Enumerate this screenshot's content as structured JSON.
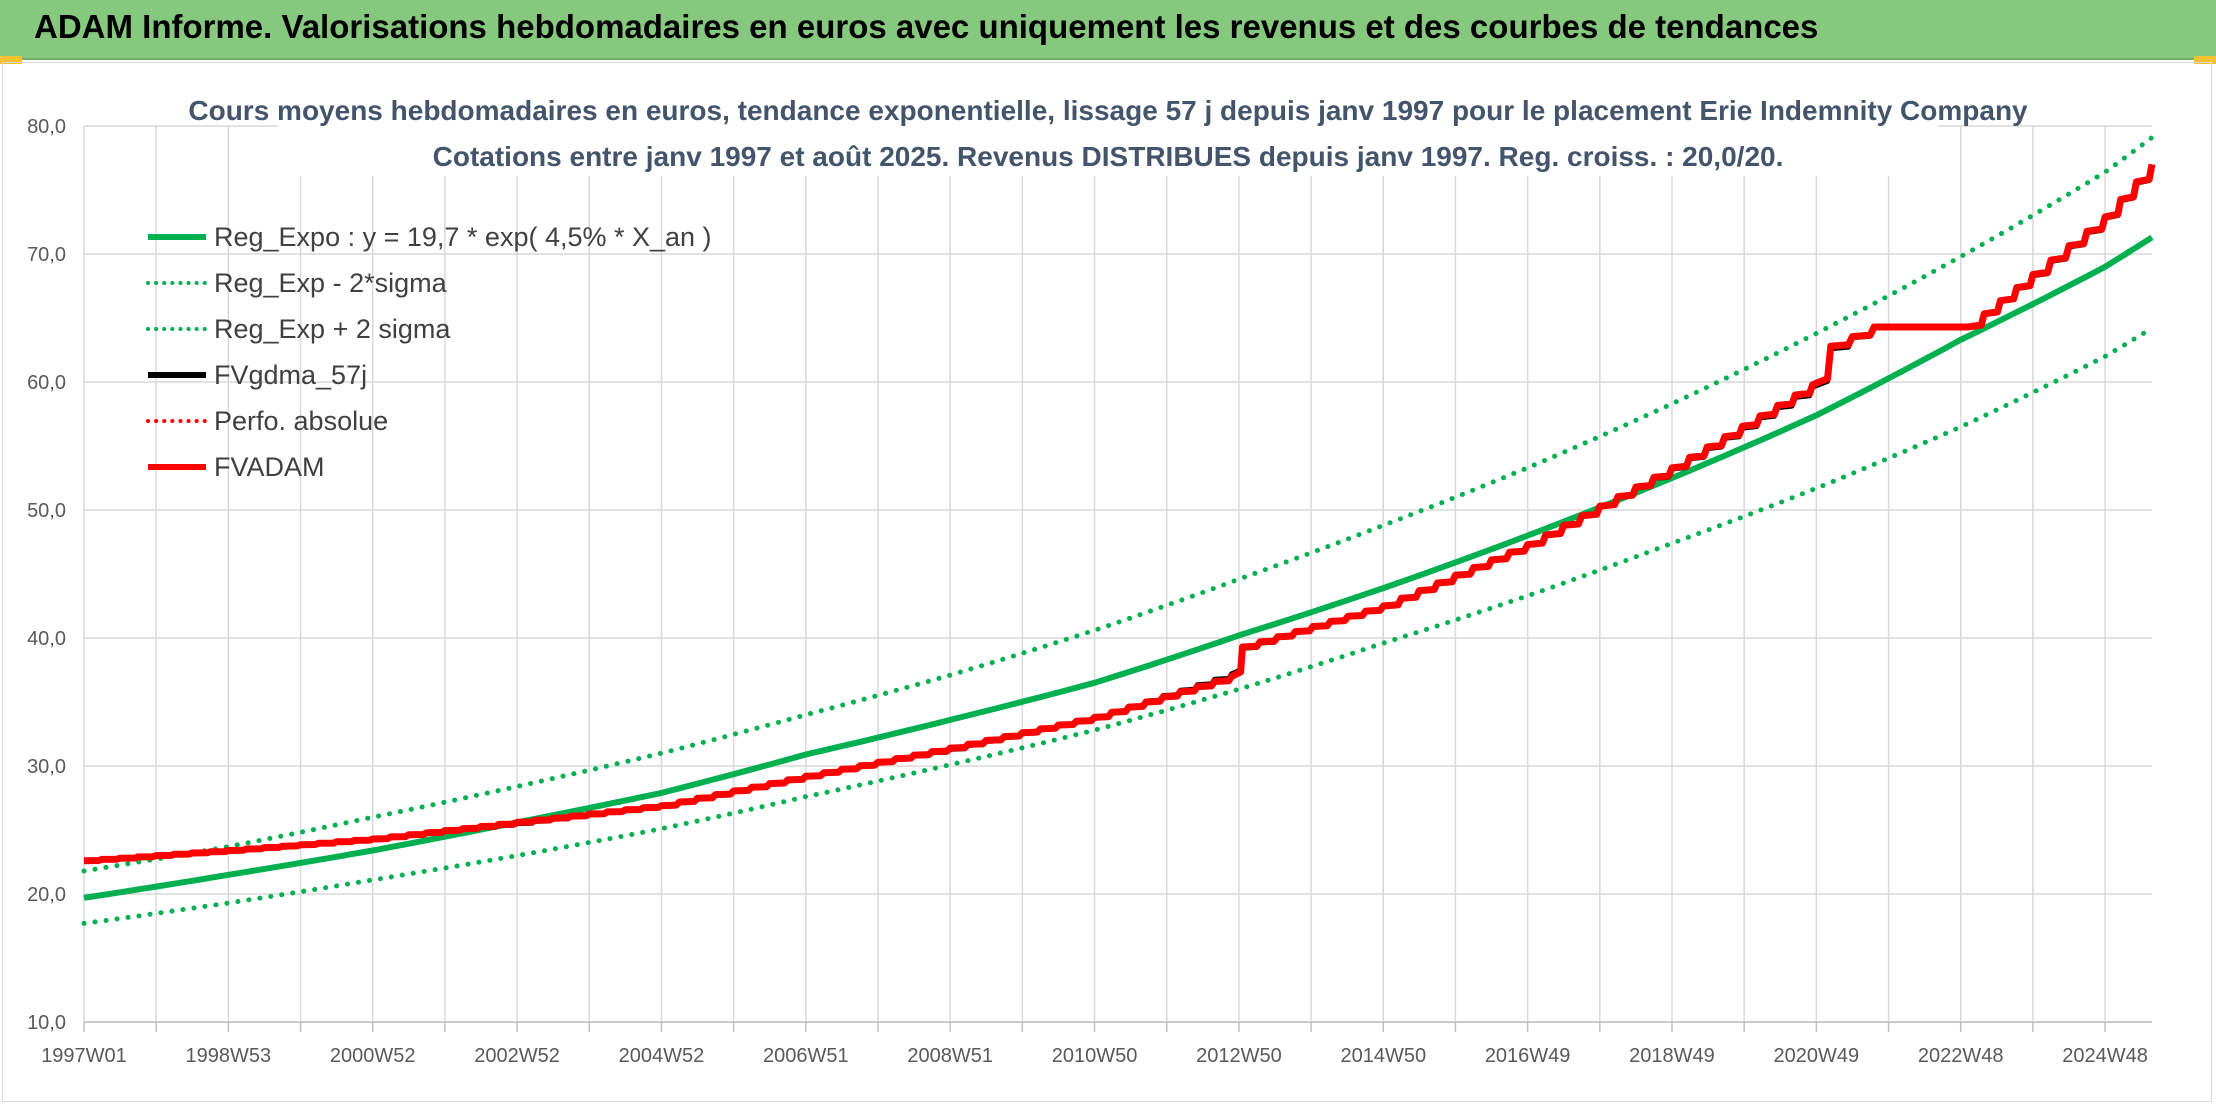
{
  "banner": {
    "title": "ADAM Informe. Valorisations hebdomadaires en euros avec uniquement les revenus et des courbes de tendances"
  },
  "colors": {
    "banner_bg": "#86c97e",
    "reg": "#00b050",
    "fv57": "#000000",
    "adam": "#ff0000"
  },
  "chart_data": {
    "type": "line",
    "title_line1": "Cours moyens hebdomadaires en euros, tendance exponentielle, lissage 57 j depuis janv 1997 pour le placement Erie Indemnity Company",
    "title_line2": "Cotations entre janv 1997 et août 2025. Revenus DISTRIBUES depuis janv 1997. Reg. croiss. : 20,0/20.",
    "ylim": [
      10,
      80
    ],
    "xlim": [
      0,
      28.65
    ],
    "grid": true,
    "legend_position": "top-left",
    "y_ticks": [
      "10,0",
      "20,0",
      "30,0",
      "40,0",
      "50,0",
      "60,0",
      "70,0",
      "80,0"
    ],
    "y_tick_values": [
      10,
      20,
      30,
      40,
      50,
      60,
      70,
      80
    ],
    "x_ticks": [
      "1997W01",
      "1998W53",
      "2000W52",
      "2002W52",
      "2004W52",
      "2006W51",
      "2008W51",
      "2010W50",
      "2012W50",
      "2014W50",
      "2016W49",
      "2018W49",
      "2020W49",
      "2022W48",
      "2024W48"
    ],
    "x_tick_values": [
      0,
      2,
      4,
      6,
      8,
      10,
      12,
      14,
      16,
      18,
      20,
      22,
      24,
      26,
      28
    ],
    "series": [
      {
        "name": "Reg_Expo : y = 19,7 * exp( 4,5% *  X_an )",
        "style": "solid",
        "color": "#00b050",
        "x": [
          0,
          2,
          4,
          6,
          8,
          10,
          12,
          14,
          16,
          18,
          20,
          22,
          24,
          26,
          28,
          28.65
        ],
        "values": [
          19.7,
          21.5,
          23.4,
          25.6,
          27.9,
          30.9,
          33.6,
          36.5,
          40.2,
          43.9,
          48.0,
          52.5,
          57.4,
          63.3,
          69.0,
          71.3
        ]
      },
      {
        "name": "Reg_Exp - 2*sigma",
        "style": "dotted",
        "color": "#00b050",
        "x": [
          0,
          2,
          4,
          6,
          8,
          10,
          12,
          14,
          16,
          18,
          20,
          22,
          24,
          26,
          28,
          28.65
        ],
        "values": [
          17.7,
          19.3,
          21.1,
          23.0,
          25.1,
          27.6,
          30.1,
          32.8,
          36.0,
          39.6,
          43.3,
          47.4,
          51.7,
          56.5,
          62.0,
          64.2
        ]
      },
      {
        "name": "Reg_Exp + 2 sigma",
        "style": "dotted",
        "color": "#00b050",
        "x": [
          0,
          2,
          4,
          6,
          8,
          10,
          12,
          14,
          16,
          18,
          20,
          22,
          24,
          26,
          28,
          28.65
        ],
        "values": [
          21.8,
          23.7,
          26.0,
          28.4,
          31.0,
          34.0,
          37.1,
          40.6,
          44.6,
          48.8,
          53.3,
          58.3,
          63.8,
          69.8,
          76.4,
          79.1
        ]
      },
      {
        "name": "FVgdma_57j",
        "style": "solid",
        "color": "#000000",
        "x": [
          0,
          2,
          4,
          6,
          8,
          10,
          12,
          14,
          15.9,
          16.05,
          18,
          20,
          22,
          23.95,
          24.2,
          24.8,
          26.1,
          27.0,
          28.0,
          28.65
        ],
        "values": [
          22.6,
          23.4,
          24.3,
          25.5,
          26.9,
          29.2,
          31.3,
          33.8,
          37.2,
          39.2,
          42.5,
          47.3,
          53.2,
          59.6,
          62.6,
          64.3,
          64.3,
          68.3,
          72.8,
          76.9
        ]
      },
      {
        "name": "Perfo. absolue",
        "style": "dotted",
        "color": "#ff0000",
        "x": [],
        "values": []
      },
      {
        "name": "FVADAM",
        "style": "solid",
        "color": "#ff0000",
        "x": [
          0,
          2,
          4,
          6,
          8,
          10,
          12,
          14,
          15.9,
          16.05,
          18,
          20,
          22,
          23.95,
          24.2,
          24.8,
          26.1,
          27.0,
          28.0,
          28.65
        ],
        "values": [
          22.6,
          23.4,
          24.3,
          25.6,
          26.9,
          29.2,
          31.4,
          33.8,
          37.0,
          39.3,
          42.5,
          47.3,
          53.3,
          59.8,
          62.8,
          64.3,
          64.3,
          68.4,
          72.9,
          77.0
        ]
      }
    ]
  }
}
